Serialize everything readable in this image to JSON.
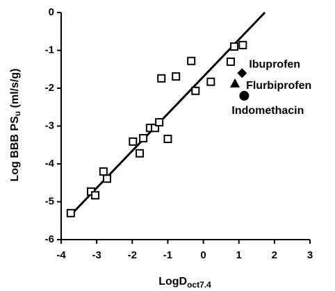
{
  "chart_data": {
    "type": "scatter",
    "xlabel": [
      "LogD",
      "oct7.4"
    ],
    "ylabel": [
      "Log BBB PS",
      "u",
      " (ml/s/g)"
    ],
    "xlim": [
      -4,
      3
    ],
    "xticks": [
      -4,
      -3,
      -2,
      -1,
      0,
      1,
      2,
      3
    ],
    "ylim": [
      -6,
      0
    ],
    "yticks": [
      -6,
      -5,
      -4,
      -3,
      -2,
      -1,
      0
    ],
    "color": "#000000",
    "series": [
      {
        "marker": "square",
        "x": [
          -3.73,
          -3.16,
          -3.04,
          -2.81,
          -2.71,
          -1.98,
          -1.79,
          -1.69,
          -1.5,
          -1.36,
          -1.24,
          -1.18,
          -1.0,
          -0.77,
          -0.34,
          -0.22,
          0.21,
          0.77,
          0.87,
          1.11
        ],
        "y": [
          -5.3,
          -4.73,
          -4.83,
          -4.2,
          -4.39,
          -3.41,
          -3.72,
          -3.32,
          -3.05,
          -3.05,
          -2.9,
          -1.74,
          -3.34,
          -1.69,
          -1.28,
          -2.07,
          -1.83,
          -1.3,
          -0.9,
          -0.86
        ]
      },
      {
        "name": "Ibuprofen",
        "marker": "diamond",
        "x": [
          1.09
        ],
        "y": [
          -1.6
        ]
      },
      {
        "name": "Flurbiprofen",
        "marker": "triangle",
        "x": [
          0.89
        ],
        "y": [
          -1.87
        ]
      },
      {
        "name": "Indomethacin",
        "marker": "circle",
        "x": [
          1.15
        ],
        "y": [
          -2.2
        ]
      }
    ],
    "fit_line": {
      "x": [
        -3.77,
        1.73
      ],
      "y": [
        -5.39,
        0
      ]
    }
  }
}
